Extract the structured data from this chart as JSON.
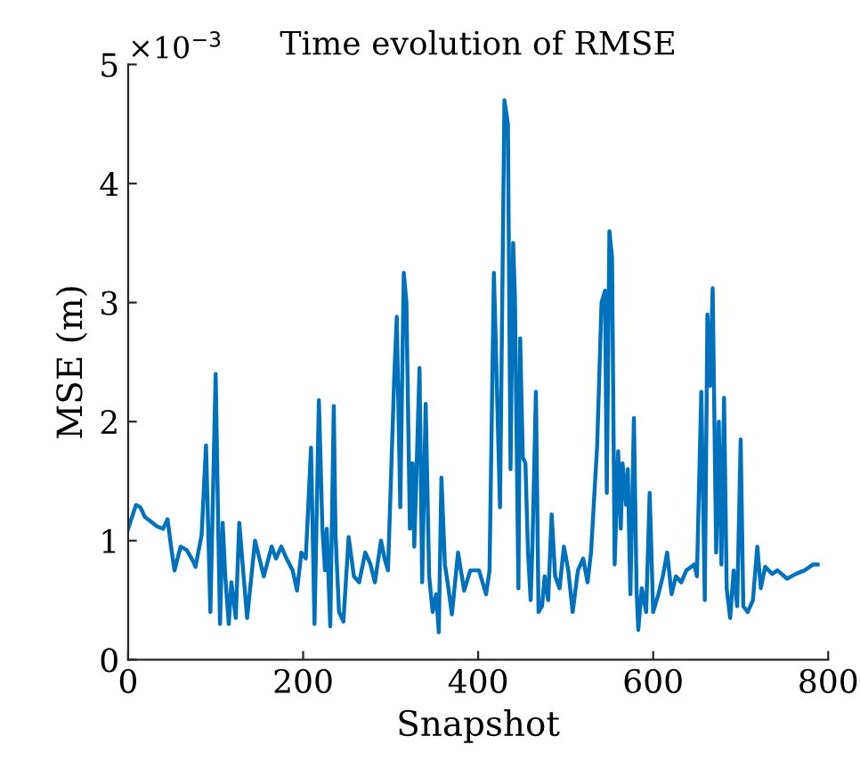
{
  "chart_data": {
    "type": "line",
    "title": "Time evolution of RMSE",
    "xlabel": "Snapshot",
    "ylabel": "MSE (m)",
    "annotations": [
      "×10$^{−3}$"
    ],
    "xlim": [
      0,
      800
    ],
    "xticks": [
      0,
      200,
      400,
      600,
      800
    ],
    "ylim": [
      0,
      5
    ],
    "yticks": [
      0,
      1,
      2,
      3,
      4,
      5
    ],
    "grid": false,
    "legend": false,
    "marker": "none",
    "line_style": "solid",
    "series": [
      {
        "color": "#0072bd",
        "x": [
          0,
          9,
          14,
          19,
          33,
          40,
          45,
          50,
          53,
          60,
          67,
          74,
          77,
          84,
          89,
          94,
          100,
          103,
          105,
          108,
          111,
          115,
          118,
          123,
          127,
          132,
          136,
          145,
          150,
          155,
          164,
          169,
          175,
          181,
          188,
          193,
          198,
          203,
          209,
          213,
          218,
          222,
          225,
          227,
          231,
          235,
          237,
          241,
          246,
          252,
          258,
          264,
          271,
          277,
          282,
          289,
          293,
          297,
          304,
          307,
          311,
          315,
          318,
          322,
          325,
          327,
          330,
          333,
          336,
          340,
          344,
          348,
          352,
          355,
          358,
          362,
          366,
          370,
          377,
          384,
          391,
          401,
          409,
          413,
          418,
          425,
          430,
          434,
          437,
          440,
          442,
          446,
          448,
          451,
          454,
          457,
          460,
          462,
          466,
          469,
          473,
          476,
          480,
          484,
          488,
          493,
          498,
          503,
          508,
          514,
          520,
          525,
          529,
          536,
          541,
          545,
          547,
          550,
          553,
          556,
          560,
          563,
          565,
          569,
          571,
          574,
          578,
          581,
          583,
          587,
          592,
          596,
          600,
          606,
          611,
          616,
          621,
          626,
          632,
          638,
          647,
          650,
          655,
          659,
          662,
          665,
          668,
          672,
          675,
          678,
          681,
          684,
          688,
          692,
          696,
          700,
          703,
          708,
          714,
          719,
          723,
          728,
          736,
          742,
          753,
          763,
          773,
          783,
          788
        ],
        "values": [
          1.1,
          1.3,
          1.28,
          1.2,
          1.12,
          1.1,
          1.18,
          0.9,
          0.75,
          0.95,
          0.92,
          0.83,
          0.78,
          1.05,
          1.8,
          0.4,
          2.4,
          1.1,
          0.3,
          1.15,
          0.7,
          0.3,
          0.65,
          0.35,
          1.15,
          0.7,
          0.35,
          1.0,
          0.85,
          0.7,
          0.95,
          0.85,
          0.95,
          0.85,
          0.75,
          0.58,
          0.9,
          0.85,
          1.78,
          0.3,
          2.18,
          1.1,
          0.75,
          1.1,
          0.28,
          2.13,
          1.05,
          0.4,
          0.32,
          1.03,
          0.7,
          0.65,
          0.9,
          0.8,
          0.65,
          1.0,
          0.85,
          0.75,
          2.35,
          2.88,
          1.28,
          3.25,
          3.0,
          1.1,
          1.65,
          0.95,
          1.7,
          2.45,
          0.65,
          2.15,
          0.7,
          0.4,
          0.55,
          0.23,
          1.53,
          0.8,
          0.6,
          0.38,
          0.9,
          0.58,
          0.75,
          0.75,
          0.55,
          0.75,
          3.25,
          1.28,
          4.7,
          4.5,
          1.6,
          3.5,
          3.05,
          0.6,
          2.7,
          1.7,
          1.65,
          0.9,
          0.5,
          0.95,
          2.25,
          0.4,
          0.45,
          0.7,
          0.5,
          1.22,
          0.7,
          0.6,
          0.95,
          0.75,
          0.4,
          0.75,
          0.85,
          0.65,
          0.9,
          1.8,
          3.0,
          3.1,
          1.4,
          3.6,
          3.38,
          0.8,
          1.75,
          1.1,
          1.65,
          1.3,
          1.6,
          0.55,
          2.03,
          0.6,
          0.25,
          0.6,
          0.4,
          1.4,
          0.4,
          0.55,
          0.7,
          0.9,
          0.55,
          0.7,
          0.65,
          0.75,
          0.8,
          0.7,
          2.25,
          0.5,
          2.9,
          2.3,
          3.12,
          0.9,
          2.0,
          0.8,
          2.2,
          0.6,
          0.35,
          0.75,
          0.45,
          1.85,
          0.45,
          0.4,
          0.5,
          0.95,
          0.6,
          0.78,
          0.72,
          0.75,
          0.68,
          0.72,
          0.75,
          0.8,
          0.8
        ]
      }
    ]
  }
}
